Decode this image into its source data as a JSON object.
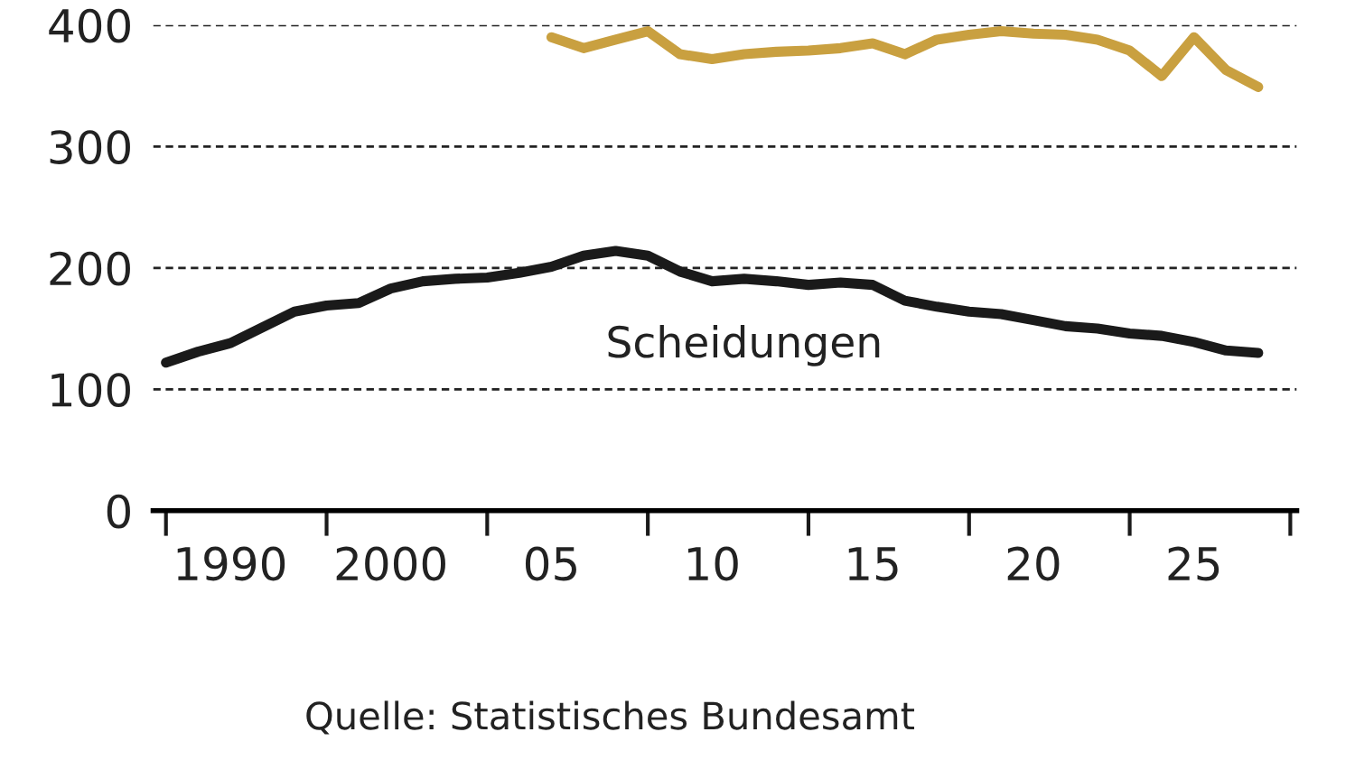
{
  "chart_data": {
    "type": "line",
    "categories": [
      null,
      null,
      "1990",
      null,
      null,
      null,
      null,
      "2000",
      null,
      null,
      null,
      null,
      "05",
      null,
      null,
      null,
      null,
      "10",
      null,
      null,
      null,
      null,
      "15",
      null,
      null,
      null,
      null,
      "20",
      null,
      null,
      null,
      null,
      "25",
      null,
      null
    ],
    "series": [
      {
        "name": "Scheidungen",
        "color": "#1a1a1a",
        "values": [
          122,
          131,
          138,
          151,
          164,
          169,
          171,
          183,
          189,
          191,
          192,
          196,
          201,
          210,
          214,
          210,
          197,
          189,
          191,
          189,
          186,
          188,
          186,
          173,
          168,
          164,
          162,
          157,
          152,
          150,
          146,
          144,
          139,
          132,
          130
        ]
      },
      {
        "color": "#c9a040",
        "values": [
          null,
          null,
          null,
          null,
          null,
          null,
          null,
          null,
          null,
          null,
          null,
          null,
          390,
          381,
          388,
          395,
          376,
          372,
          376,
          378,
          379,
          381,
          385,
          376,
          388,
          392,
          395,
          393,
          392,
          388,
          379,
          358,
          390,
          363,
          349
        ]
      }
    ],
    "ylim": [
      0,
      400
    ],
    "yticks": [
      0,
      100,
      200,
      300,
      400
    ],
    "grid": "y",
    "line_style": "solid",
    "annotations": [
      "Quelle: Statistisches Bundesamt"
    ]
  }
}
